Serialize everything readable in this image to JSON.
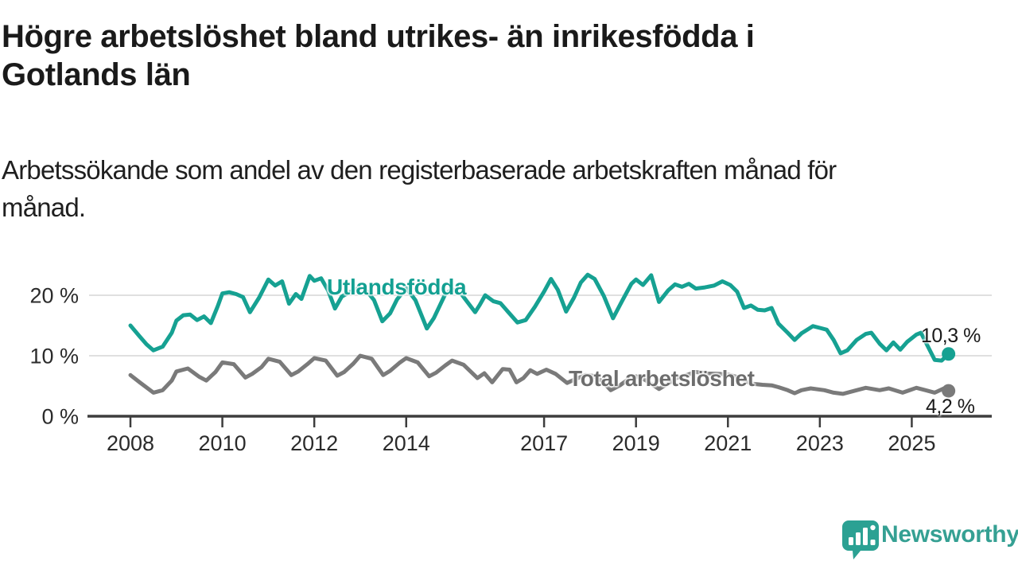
{
  "header": {
    "title": "Högre arbetslöshet bland utrikes- än inrikesfödda i Gotlands län",
    "title_lines": [
      "Högre arbetslöshet bland utrikes- än inrikesfödda i",
      "Gotlands län"
    ],
    "subtitle": "Arbetssökande som andel av den registerbaserade arbetskraften månad för månad.",
    "subtitle_lines": [
      "Arbetssökande som andel av den registerbaserade arbetskraften månad för",
      "månad."
    ]
  },
  "colors": {
    "accent_teal": "#16a192",
    "line_gray": "#7a7a7a",
    "series_label_gray": "#6d6d6d",
    "text_dark": "#1a1a1a",
    "grid": "#dcdcdc",
    "axis": "#3d3d3d",
    "tick_text": "#2b2b2b",
    "brand_teal": "#35a093"
  },
  "branding": {
    "logo_icon": "newsworthy-speech-bubble-bar-chart",
    "wordmark": "Newsworthy"
  },
  "chart_data": {
    "type": "line",
    "title": "",
    "xlabel": "",
    "ylabel": "",
    "x_unit": "year (monthly series)",
    "value_unit": "percent of registered labour force",
    "ylim": [
      0,
      25
    ],
    "xlim": [
      2007.1,
      2026.7
    ],
    "grid": "horizontal gridlines at 10 % and 20 % only",
    "legend_position": "inline labels on lines",
    "yticks": [
      {
        "value": 0,
        "label": "0 %"
      },
      {
        "value": 10,
        "label": "10 %"
      },
      {
        "value": 20,
        "label": "20 %"
      }
    ],
    "xticks": [
      {
        "value": 2008,
        "label": "2008"
      },
      {
        "value": 2010,
        "label": "2010"
      },
      {
        "value": 2012,
        "label": "2012"
      },
      {
        "value": 2014,
        "label": "2014"
      },
      {
        "value": 2017,
        "label": "2017"
      },
      {
        "value": 2019,
        "label": "2019"
      },
      {
        "value": 2021,
        "label": "2021"
      },
      {
        "value": 2023,
        "label": "2023"
      },
      {
        "value": 2025,
        "label": "2025"
      }
    ],
    "series": [
      {
        "name": "Utlandsfödda",
        "color": "#16a192",
        "end_label": "10,3 %",
        "end_value": 10.3,
        "points": [
          [
            2008.0,
            15.0
          ],
          [
            2008.2,
            13.2
          ],
          [
            2008.35,
            11.9
          ],
          [
            2008.5,
            10.9
          ],
          [
            2008.7,
            11.5
          ],
          [
            2008.9,
            13.8
          ],
          [
            2009.0,
            15.8
          ],
          [
            2009.15,
            16.7
          ],
          [
            2009.3,
            16.8
          ],
          [
            2009.45,
            15.9
          ],
          [
            2009.6,
            16.5
          ],
          [
            2009.75,
            15.4
          ],
          [
            2009.9,
            18.2
          ],
          [
            2010.0,
            20.3
          ],
          [
            2010.15,
            20.5
          ],
          [
            2010.3,
            20.2
          ],
          [
            2010.45,
            19.7
          ],
          [
            2010.6,
            17.2
          ],
          [
            2010.8,
            19.6
          ],
          [
            2011.0,
            22.6
          ],
          [
            2011.15,
            21.6
          ],
          [
            2011.3,
            22.3
          ],
          [
            2011.45,
            18.6
          ],
          [
            2011.6,
            20.2
          ],
          [
            2011.72,
            19.4
          ],
          [
            2011.9,
            23.2
          ],
          [
            2012.0,
            22.4
          ],
          [
            2012.15,
            22.8
          ],
          [
            2012.3,
            20.8
          ],
          [
            2012.45,
            17.8
          ],
          [
            2012.6,
            19.8
          ],
          [
            2012.8,
            20.6
          ],
          [
            2013.0,
            21.3
          ],
          [
            2013.15,
            20.6
          ],
          [
            2013.3,
            19.2
          ],
          [
            2013.48,
            15.7
          ],
          [
            2013.65,
            17.0
          ],
          [
            2013.8,
            19.3
          ],
          [
            2014.0,
            21.2
          ],
          [
            2014.2,
            19.2
          ],
          [
            2014.45,
            14.5
          ],
          [
            2014.6,
            16.2
          ],
          [
            2014.85,
            20.2
          ],
          [
            2015.0,
            21.0
          ],
          [
            2015.2,
            20.2
          ],
          [
            2015.5,
            17.2
          ],
          [
            2015.6,
            18.4
          ],
          [
            2015.72,
            20.0
          ],
          [
            2015.9,
            19.0
          ],
          [
            2016.05,
            18.7
          ],
          [
            2016.2,
            17.4
          ],
          [
            2016.42,
            15.5
          ],
          [
            2016.6,
            15.9
          ],
          [
            2016.8,
            18.1
          ],
          [
            2017.0,
            20.6
          ],
          [
            2017.15,
            22.7
          ],
          [
            2017.3,
            20.9
          ],
          [
            2017.48,
            17.3
          ],
          [
            2017.65,
            19.6
          ],
          [
            2017.8,
            22.1
          ],
          [
            2017.95,
            23.4
          ],
          [
            2018.1,
            22.7
          ],
          [
            2018.3,
            19.9
          ],
          [
            2018.5,
            16.2
          ],
          [
            2018.7,
            19.1
          ],
          [
            2018.9,
            21.9
          ],
          [
            2019.0,
            22.6
          ],
          [
            2019.15,
            21.7
          ],
          [
            2019.33,
            23.3
          ],
          [
            2019.5,
            18.9
          ],
          [
            2019.7,
            20.8
          ],
          [
            2019.85,
            21.8
          ],
          [
            2020.0,
            21.4
          ],
          [
            2020.15,
            21.9
          ],
          [
            2020.3,
            21.1
          ],
          [
            2020.5,
            21.3
          ],
          [
            2020.7,
            21.6
          ],
          [
            2020.88,
            22.3
          ],
          [
            2021.05,
            21.7
          ],
          [
            2021.2,
            20.6
          ],
          [
            2021.35,
            17.9
          ],
          [
            2021.5,
            18.3
          ],
          [
            2021.65,
            17.6
          ],
          [
            2021.8,
            17.5
          ],
          [
            2021.95,
            17.9
          ],
          [
            2022.1,
            15.3
          ],
          [
            2022.3,
            13.8
          ],
          [
            2022.45,
            12.6
          ],
          [
            2022.6,
            13.7
          ],
          [
            2022.85,
            14.9
          ],
          [
            2023.0,
            14.6
          ],
          [
            2023.15,
            14.3
          ],
          [
            2023.3,
            12.6
          ],
          [
            2023.45,
            10.4
          ],
          [
            2023.6,
            10.9
          ],
          [
            2023.8,
            12.6
          ],
          [
            2024.0,
            13.6
          ],
          [
            2024.12,
            13.8
          ],
          [
            2024.3,
            12.0
          ],
          [
            2024.45,
            10.9
          ],
          [
            2024.6,
            12.2
          ],
          [
            2024.75,
            11.0
          ],
          [
            2024.9,
            12.3
          ],
          [
            2025.1,
            13.5
          ],
          [
            2025.2,
            13.8
          ],
          [
            2025.4,
            10.8
          ],
          [
            2025.5,
            9.3
          ],
          [
            2025.65,
            9.2
          ],
          [
            2025.8,
            10.3
          ]
        ]
      },
      {
        "name": "Total arbetslöshet",
        "color": "#7a7a7a",
        "end_label": "4,2 %",
        "end_value": 4.2,
        "points": [
          [
            2008.0,
            6.8
          ],
          [
            2008.2,
            5.6
          ],
          [
            2008.5,
            3.9
          ],
          [
            2008.7,
            4.3
          ],
          [
            2008.9,
            5.9
          ],
          [
            2009.0,
            7.4
          ],
          [
            2009.25,
            7.9
          ],
          [
            2009.5,
            6.5
          ],
          [
            2009.65,
            5.9
          ],
          [
            2009.85,
            7.3
          ],
          [
            2010.0,
            8.9
          ],
          [
            2010.25,
            8.6
          ],
          [
            2010.5,
            6.4
          ],
          [
            2010.65,
            7.0
          ],
          [
            2010.85,
            8.1
          ],
          [
            2011.0,
            9.5
          ],
          [
            2011.25,
            9.0
          ],
          [
            2011.5,
            6.8
          ],
          [
            2011.65,
            7.4
          ],
          [
            2011.85,
            8.6
          ],
          [
            2012.0,
            9.6
          ],
          [
            2012.25,
            9.2
          ],
          [
            2012.5,
            6.7
          ],
          [
            2012.65,
            7.3
          ],
          [
            2012.85,
            8.7
          ],
          [
            2013.0,
            10.0
          ],
          [
            2013.25,
            9.5
          ],
          [
            2013.5,
            6.8
          ],
          [
            2013.65,
            7.5
          ],
          [
            2013.85,
            8.8
          ],
          [
            2014.0,
            9.6
          ],
          [
            2014.25,
            8.9
          ],
          [
            2014.5,
            6.6
          ],
          [
            2014.65,
            7.2
          ],
          [
            2014.85,
            8.4
          ],
          [
            2015.0,
            9.2
          ],
          [
            2015.25,
            8.5
          ],
          [
            2015.55,
            6.3
          ],
          [
            2015.7,
            7.1
          ],
          [
            2015.87,
            5.6
          ],
          [
            2016.1,
            7.8
          ],
          [
            2016.25,
            7.7
          ],
          [
            2016.4,
            5.6
          ],
          [
            2016.55,
            6.3
          ],
          [
            2016.7,
            7.6
          ],
          [
            2016.85,
            7.0
          ],
          [
            2017.05,
            7.7
          ],
          [
            2017.25,
            7.0
          ],
          [
            2017.5,
            5.5
          ],
          [
            2017.7,
            6.2
          ],
          [
            2017.9,
            6.8
          ],
          [
            2018.05,
            6.7
          ],
          [
            2018.25,
            5.9
          ],
          [
            2018.45,
            4.3
          ],
          [
            2018.65,
            5.1
          ],
          [
            2018.85,
            6.2
          ],
          [
            2019.0,
            6.6
          ],
          [
            2019.2,
            6.0
          ],
          [
            2019.5,
            4.5
          ],
          [
            2019.7,
            5.4
          ],
          [
            2019.9,
            6.4
          ],
          [
            2020.05,
            6.7
          ],
          [
            2020.3,
            7.3
          ],
          [
            2020.55,
            7.1
          ],
          [
            2020.8,
            7.0
          ],
          [
            2021.0,
            6.9
          ],
          [
            2021.25,
            6.4
          ],
          [
            2021.5,
            5.4
          ],
          [
            2021.75,
            5.2
          ],
          [
            2021.95,
            5.1
          ],
          [
            2022.1,
            4.8
          ],
          [
            2022.3,
            4.3
          ],
          [
            2022.45,
            3.8
          ],
          [
            2022.6,
            4.3
          ],
          [
            2022.8,
            4.6
          ],
          [
            2023.1,
            4.3
          ],
          [
            2023.3,
            3.9
          ],
          [
            2023.5,
            3.7
          ],
          [
            2023.8,
            4.3
          ],
          [
            2024.0,
            4.7
          ],
          [
            2024.3,
            4.3
          ],
          [
            2024.5,
            4.6
          ],
          [
            2024.8,
            3.9
          ],
          [
            2025.1,
            4.7
          ],
          [
            2025.3,
            4.3
          ],
          [
            2025.5,
            3.9
          ],
          [
            2025.7,
            4.6
          ],
          [
            2025.8,
            4.2
          ]
        ]
      }
    ]
  }
}
